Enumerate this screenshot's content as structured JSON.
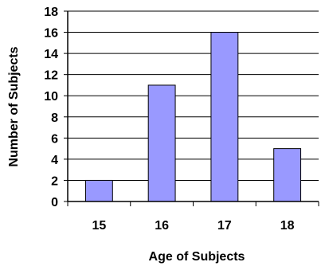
{
  "chart_data": {
    "type": "bar",
    "categories": [
      "15",
      "16",
      "17",
      "18"
    ],
    "values": [
      2,
      11,
      16,
      5
    ],
    "title": "",
    "xlabel": "Age of Subjects",
    "ylabel": "Number of Subjects",
    "ylim": [
      0,
      18
    ],
    "yticks": [
      "0",
      "2",
      "4",
      "6",
      "8",
      "10",
      "12",
      "14",
      "16",
      "18"
    ],
    "grid": true,
    "legend": "none",
    "colors": {
      "bar_fill": "#9999FF",
      "bar_stroke": "#000000",
      "grid": "#000000"
    }
  }
}
